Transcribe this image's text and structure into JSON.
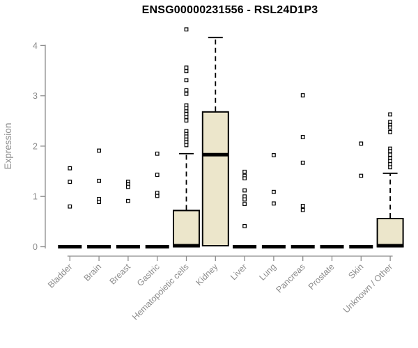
{
  "chart_data": {
    "type": "boxplot",
    "title": "ENSG00000231556 - RSL24D1P3",
    "ylabel": "Expression",
    "xlabel": "",
    "ylim": [
      0,
      4.35
    ],
    "yticks": [
      0,
      1,
      2,
      3,
      4
    ],
    "grid": false,
    "legend": null,
    "colors": {
      "box_fill": "#ece6cb",
      "data": "#000000",
      "axis": "#8c8c8c",
      "tick_text": "#8c8c8c",
      "title_text": "#000000",
      "background": "#ffffff"
    },
    "categories": [
      "Bladder",
      "Brain",
      "Breast",
      "Gastric",
      "Hematopoietic cells",
      "Kidney",
      "Liver",
      "Lung",
      "Pancreas",
      "Prostate",
      "Skin",
      "Unknown / Other"
    ],
    "series": [
      {
        "name": "Bladder",
        "box": null,
        "median": 0,
        "outliers": [
          1.56,
          1.29,
          0.8
        ]
      },
      {
        "name": "Brain",
        "box": null,
        "median": 0,
        "outliers": [
          1.91,
          1.31,
          0.95,
          0.89
        ]
      },
      {
        "name": "Breast",
        "box": null,
        "median": 0,
        "outliers": [
          1.29,
          1.24,
          1.19,
          0.91
        ]
      },
      {
        "name": "Gastric",
        "box": null,
        "median": 0,
        "outliers": [
          1.85,
          1.43,
          1.07,
          1.01
        ]
      },
      {
        "name": "Hematopoietic cells",
        "box": {
          "q1": 0,
          "median": 0.02,
          "q3": 0.72,
          "whisker_high": 1.85
        },
        "outliers": [
          4.32,
          3.56,
          3.49,
          3.31,
          3.11,
          3.04,
          2.81,
          2.75,
          2.69,
          2.64,
          2.58,
          2.51,
          2.3,
          2.24,
          2.19,
          2.13,
          2.08,
          2.02
        ]
      },
      {
        "name": "Kidney",
        "box": {
          "q1": 0.02,
          "median": 1.83,
          "q3": 2.68,
          "whisker_high": 4.16
        },
        "outliers": []
      },
      {
        "name": "Liver",
        "box": null,
        "median": 0,
        "outliers": [
          1.49,
          1.41,
          1.36,
          1.12,
          1.0,
          0.94,
          0.85,
          0.41
        ]
      },
      {
        "name": "Lung",
        "box": null,
        "median": 0,
        "outliers": [
          1.82,
          1.09,
          0.86
        ]
      },
      {
        "name": "Pancreas",
        "box": null,
        "median": 0,
        "outliers": [
          3.01,
          2.18,
          1.67,
          0.81,
          0.73
        ]
      },
      {
        "name": "Prostate",
        "box": null,
        "median": 0,
        "outliers": []
      },
      {
        "name": "Skin",
        "box": null,
        "median": 0,
        "outliers": [
          2.05,
          1.41
        ]
      },
      {
        "name": "Unknown / Other",
        "box": {
          "q1": 0,
          "median": 0.02,
          "q3": 0.56,
          "whisker_high": 1.46
        },
        "outliers": [
          2.63,
          2.48,
          2.42,
          2.37,
          2.28,
          1.95,
          1.9,
          1.83,
          1.76,
          1.7,
          1.64,
          1.58
        ]
      }
    ]
  }
}
